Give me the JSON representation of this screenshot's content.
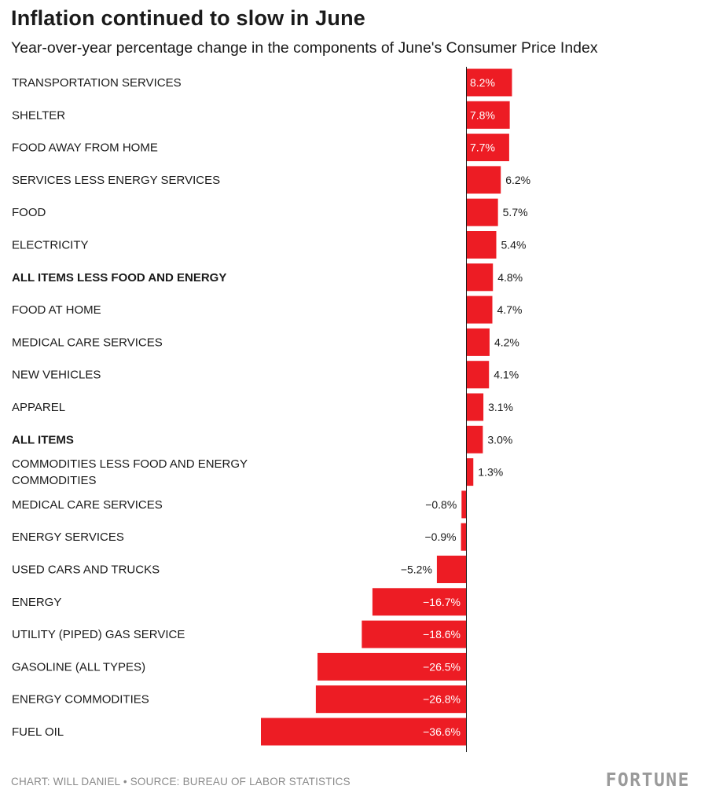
{
  "chart_data": {
    "type": "bar",
    "orientation": "horizontal",
    "title": "Inflation continued to slow in June",
    "subtitle": "Year-over-year percentage change in the components of June's Consumer Price Index",
    "bar_color": "#ed1c24",
    "categories": [
      "TRANSPORTATION SERVICES",
      "SHELTER",
      "FOOD AWAY FROM HOME",
      "SERVICES LESS ENERGY SERVICES",
      "FOOD",
      "ELECTRICITY",
      "ALL ITEMS LESS FOOD AND ENERGY",
      "FOOD AT HOME",
      "MEDICAL CARE SERVICES",
      "NEW VEHICLES",
      "APPAREL",
      "ALL ITEMS",
      "COMMODITIES LESS FOOD AND ENERGY COMMODITIES",
      "MEDICAL CARE SERVICES",
      "ENERGY SERVICES",
      "USED CARS AND TRUCKS",
      "ENERGY",
      "UTILITY (PIPED) GAS SERVICE",
      "GASOLINE (ALL TYPES)",
      "ENERGY COMMODITIES",
      "FUEL OIL"
    ],
    "values": [
      8.2,
      7.8,
      7.7,
      6.2,
      5.7,
      5.4,
      4.8,
      4.7,
      4.2,
      4.1,
      3.1,
      3.0,
      1.3,
      -0.8,
      -0.9,
      -5.2,
      -16.7,
      -18.6,
      -26.5,
      -26.8,
      -36.6
    ],
    "value_labels": [
      "8.2%",
      "7.8%",
      "7.7%",
      "6.2%",
      "5.7%",
      "5.4%",
      "4.8%",
      "4.7%",
      "4.2%",
      "4.1%",
      "3.1%",
      "3.0%",
      "1.3%",
      "−0.8%",
      "−0.9%",
      "−5.2%",
      "−16.7%",
      "−18.6%",
      "−26.5%",
      "−26.8%",
      "−36.6%"
    ],
    "bold_categories": [
      "ALL ITEMS LESS FOOD AND ENERGY",
      "ALL ITEMS"
    ],
    "xlim": [
      -36.6,
      8.2
    ],
    "xlabel": "",
    "ylabel": "",
    "grid": false
  },
  "footer": {
    "credit": "CHART: WILL DANIEL • SOURCE: BUREAU OF LABOR STATISTICS",
    "brand": "FORTUNE"
  }
}
